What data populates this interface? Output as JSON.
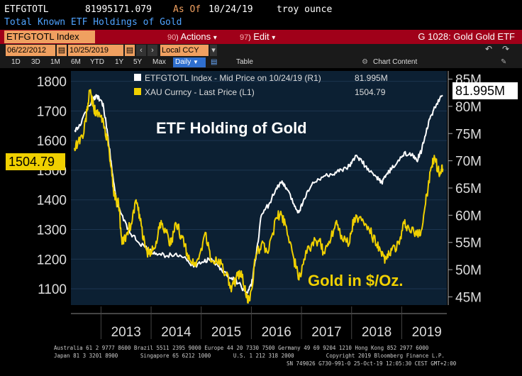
{
  "header": {
    "ticker": "ETFGTOTL",
    "value": "81995171.079",
    "as_of_label": "As Of",
    "date": "10/24/19",
    "unit": "troy ounce",
    "description": "Total Known ETF Holdings of Gold"
  },
  "toolbar": {
    "security": "ETFGTOTL Index",
    "actions_num": "90",
    "actions_label": "Actions",
    "edit_num": "97",
    "edit_label": "Edit",
    "screen_title": "G 1028: Gold Gold ETF",
    "caret": "▾",
    "icons": [
      "undo-icon",
      "redo-icon"
    ]
  },
  "date_range": {
    "start": "06/22/2012",
    "end": "10/25/2019",
    "currency": "Local CCY"
  },
  "periods": [
    "1D",
    "3D",
    "1M",
    "6M",
    "YTD",
    "1Y",
    "5Y",
    "Max"
  ],
  "frequency": "Daily",
  "view_label": "Table",
  "chart_content_label": "Chart Content",
  "legend": [
    {
      "label": "ETFGTOTL Index - Mid Price on 10/24/19 (R1)",
      "value": "81.995M",
      "color": "#ffffff"
    },
    {
      "label": "XAU Curncy - Last Price (L1)",
      "value": "1504.79",
      "color": "#f0d000"
    }
  ],
  "annotations": {
    "title": "ETF Holding of Gold",
    "gold": "Gold in $/Oz."
  },
  "last_values": {
    "left": "1504.79",
    "right": "81.995M"
  },
  "footer": {
    "line1": "Australia 61 2 9777 8600 Brazil 5511 2395 9000 Europe 44 20 7330 7500 Germany 49 69 9204 1210 Hong Kong 852 2977 6000",
    "line2": "Japan 81 3 3201 8900       Singapore 65 6212 1000       U.S. 1 212 318 2000          Copyright 2019 Bloomberg Finance L.P.",
    "line3": "SN 749026 G730-991-0 25-Oct-19 12:05:30 CEST GMT+2:00"
  },
  "colors": {
    "etf": "#ffffff",
    "gold": "#f0d000",
    "plot_bg": "#0c2033",
    "accent_red": "#a00019",
    "accent_orange": "#f0a060"
  },
  "chart_data": {
    "type": "line",
    "x_ticks": [
      "2013",
      "2014",
      "2015",
      "2016",
      "2017",
      "2018",
      "2019"
    ],
    "left_axis": {
      "ticks": [
        1100,
        1200,
        1300,
        1400,
        1500,
        1600,
        1700,
        1800
      ],
      "ylim": [
        1045,
        1835
      ]
    },
    "right_axis": {
      "ticks": [
        "45M",
        "50M",
        "55M",
        "60M",
        "65M",
        "70M",
        "75M",
        "80M",
        "85M"
      ],
      "ylim": [
        43.5,
        86.5
      ]
    },
    "series": [
      {
        "name": "ETFGTOTL Index - Mid Price on 10/24/19 (R1)",
        "axis": "right",
        "color": "#ffffff",
        "points": [
          [
            2012.47,
            75.5
          ],
          [
            2012.55,
            76
          ],
          [
            2012.7,
            79
          ],
          [
            2012.85,
            81.5
          ],
          [
            2012.92,
            82
          ],
          [
            2012.98,
            81.2
          ],
          [
            2013.05,
            80
          ],
          [
            2013.13,
            75
          ],
          [
            2013.2,
            70
          ],
          [
            2013.3,
            63
          ],
          [
            2013.45,
            59
          ],
          [
            2013.6,
            56.5
          ],
          [
            2013.75,
            55
          ],
          [
            2013.95,
            53.5
          ],
          [
            2014.1,
            53
          ],
          [
            2014.3,
            52.5
          ],
          [
            2014.5,
            53
          ],
          [
            2014.7,
            52
          ],
          [
            2014.85,
            50.5
          ],
          [
            2015.0,
            51.2
          ],
          [
            2015.15,
            52
          ],
          [
            2015.3,
            51
          ],
          [
            2015.45,
            49.5
          ],
          [
            2015.6,
            48.5
          ],
          [
            2015.75,
            47.5
          ],
          [
            2015.9,
            45.7
          ],
          [
            2016.0,
            47
          ],
          [
            2016.1,
            53
          ],
          [
            2016.2,
            60
          ],
          [
            2016.35,
            62
          ],
          [
            2016.5,
            65
          ],
          [
            2016.6,
            66
          ],
          [
            2016.7,
            65
          ],
          [
            2016.85,
            62
          ],
          [
            2016.95,
            60.5
          ],
          [
            2017.05,
            63
          ],
          [
            2017.2,
            65.5
          ],
          [
            2017.4,
            67
          ],
          [
            2017.6,
            67.5
          ],
          [
            2017.75,
            68
          ],
          [
            2017.9,
            68.5
          ],
          [
            2018.0,
            69.5
          ],
          [
            2018.1,
            71
          ],
          [
            2018.2,
            70
          ],
          [
            2018.35,
            68
          ],
          [
            2018.5,
            67
          ],
          [
            2018.6,
            66
          ],
          [
            2018.7,
            67.5
          ],
          [
            2018.8,
            68.5
          ],
          [
            2018.95,
            70
          ],
          [
            2019.05,
            71.5
          ],
          [
            2019.2,
            71
          ],
          [
            2019.3,
            70
          ],
          [
            2019.4,
            72
          ],
          [
            2019.5,
            76
          ],
          [
            2019.6,
            78.5
          ],
          [
            2019.7,
            80.5
          ],
          [
            2019.82,
            82
          ]
        ]
      },
      {
        "name": "XAU Curncy - Last Price (L1)",
        "axis": "left",
        "color": "#f0d000",
        "points": [
          [
            2012.47,
            1575
          ],
          [
            2012.55,
            1600
          ],
          [
            2012.65,
            1620
          ],
          [
            2012.72,
            1700
          ],
          [
            2012.78,
            1770
          ],
          [
            2012.85,
            1715
          ],
          [
            2012.92,
            1690
          ],
          [
            2013.0,
            1680
          ],
          [
            2013.08,
            1640
          ],
          [
            2013.15,
            1580
          ],
          [
            2013.22,
            1480
          ],
          [
            2013.28,
            1400
          ],
          [
            2013.35,
            1390
          ],
          [
            2013.42,
            1250
          ],
          [
            2013.5,
            1280
          ],
          [
            2013.6,
            1320
          ],
          [
            2013.7,
            1400
          ],
          [
            2013.78,
            1330
          ],
          [
            2013.88,
            1240
          ],
          [
            2013.98,
            1210
          ],
          [
            2014.1,
            1260
          ],
          [
            2014.2,
            1330
          ],
          [
            2014.3,
            1290
          ],
          [
            2014.4,
            1250
          ],
          [
            2014.5,
            1320
          ],
          [
            2014.6,
            1280
          ],
          [
            2014.72,
            1220
          ],
          [
            2014.85,
            1180
          ],
          [
            2014.95,
            1200
          ],
          [
            2015.08,
            1290
          ],
          [
            2015.2,
            1190
          ],
          [
            2015.35,
            1200
          ],
          [
            2015.5,
            1150
          ],
          [
            2015.6,
            1090
          ],
          [
            2015.7,
            1140
          ],
          [
            2015.8,
            1160
          ],
          [
            2015.9,
            1070
          ],
          [
            2015.97,
            1060
          ],
          [
            2016.08,
            1200
          ],
          [
            2016.2,
            1250
          ],
          [
            2016.35,
            1230
          ],
          [
            2016.5,
            1340
          ],
          [
            2016.6,
            1350
          ],
          [
            2016.7,
            1310
          ],
          [
            2016.85,
            1200
          ],
          [
            2016.95,
            1130
          ],
          [
            2017.05,
            1200
          ],
          [
            2017.2,
            1250
          ],
          [
            2017.35,
            1260
          ],
          [
            2017.45,
            1220
          ],
          [
            2017.55,
            1260
          ],
          [
            2017.7,
            1330
          ],
          [
            2017.8,
            1280
          ],
          [
            2017.95,
            1250
          ],
          [
            2018.05,
            1340
          ],
          [
            2018.2,
            1330
          ],
          [
            2018.35,
            1300
          ],
          [
            2018.5,
            1250
          ],
          [
            2018.6,
            1210
          ],
          [
            2018.7,
            1200
          ],
          [
            2018.8,
            1230
          ],
          [
            2018.95,
            1250
          ],
          [
            2019.05,
            1320
          ],
          [
            2019.15,
            1300
          ],
          [
            2019.3,
            1280
          ],
          [
            2019.4,
            1300
          ],
          [
            2019.5,
            1420
          ],
          [
            2019.6,
            1510
          ],
          [
            2019.65,
            1550
          ],
          [
            2019.72,
            1500
          ],
          [
            2019.78,
            1490
          ],
          [
            2019.82,
            1505
          ]
        ]
      }
    ]
  }
}
